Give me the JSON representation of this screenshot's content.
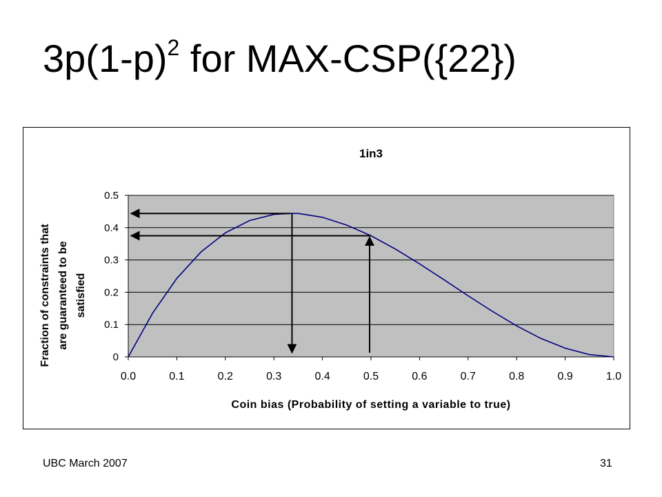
{
  "slide": {
    "title_main": "3p(1-p)",
    "title_exponent": "2",
    "title_rest": " for MAX-CSP({22})",
    "footer_left": "UBC March 2007",
    "page_number": "31"
  },
  "colors": {
    "plot_background": "#c0c0c0",
    "curve": "#000080",
    "arrows": "#000000",
    "gridlines": "#000000"
  },
  "chart_data": {
    "type": "line",
    "title": "1in3",
    "xlabel": "Coin bias (Probability of setting a variable to true)",
    "ylabel_lines": [
      "Fraction of constraints that",
      "are guaranteed to be",
      "satisfied"
    ],
    "xlim": [
      0,
      1
    ],
    "ylim": [
      0,
      0.5
    ],
    "x_ticks": [
      0.0,
      0.1,
      0.2,
      0.3,
      0.4,
      0.5,
      0.6,
      0.7,
      0.8,
      0.9,
      1.0
    ],
    "x_tick_labels": [
      "0.0",
      "0.1",
      "0.2",
      "0.3",
      "0.4",
      "0.5",
      "0.6",
      "0.7",
      "0.8",
      "0.9",
      "1.0"
    ],
    "y_ticks": [
      0,
      0.1,
      0.2,
      0.3,
      0.4,
      0.5
    ],
    "y_tick_labels": [
      "0",
      "0.1",
      "0.2",
      "0.3",
      "0.4",
      "0.5"
    ],
    "grid": "horizontal",
    "series": [
      {
        "x": [
          0.0,
          0.05,
          0.1,
          0.15,
          0.2,
          0.25,
          0.3,
          0.333,
          0.35,
          0.4,
          0.45,
          0.5,
          0.55,
          0.6,
          0.65,
          0.7,
          0.75,
          0.8,
          0.85,
          0.9,
          0.95,
          1.0
        ],
        "y": [
          0.0,
          0.135,
          0.243,
          0.325,
          0.384,
          0.422,
          0.441,
          0.444,
          0.444,
          0.432,
          0.408,
          0.375,
          0.334,
          0.288,
          0.239,
          0.189,
          0.141,
          0.096,
          0.057,
          0.027,
          0.007,
          0.0
        ]
      }
    ],
    "annotations": [
      {
        "type": "arrow-pair",
        "x": 0.333,
        "y": 0.444
      },
      {
        "type": "arrow-pair",
        "x": 0.5,
        "y": 0.375
      }
    ]
  }
}
